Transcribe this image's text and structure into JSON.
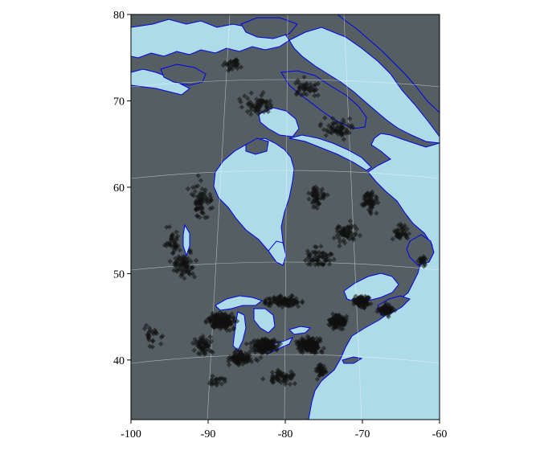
{
  "map": {
    "x_axis": {
      "ticks": [
        {
          "value": -100,
          "label": "-100"
        },
        {
          "value": -90,
          "label": "-90"
        },
        {
          "value": -80,
          "label": "-80"
        },
        {
          "value": -70,
          "label": "-70"
        },
        {
          "value": -60,
          "label": "-60"
        }
      ],
      "range": [
        -100,
        -60
      ]
    },
    "y_axis": {
      "ticks": [
        {
          "value": 40,
          "label": "40"
        },
        {
          "value": 50,
          "label": "50"
        },
        {
          "value": 60,
          "label": "60"
        },
        {
          "value": 70,
          "label": "70"
        },
        {
          "value": 80,
          "label": "80"
        }
      ],
      "range": [
        33.1,
        80
      ]
    },
    "colors": {
      "land": "#555f63",
      "water": "#aedbe8",
      "coastline": "#0000ee",
      "points": "#111111",
      "graticule": "#ffffff"
    },
    "marker_shape": "diamond",
    "point_count_approx": 1500
  }
}
